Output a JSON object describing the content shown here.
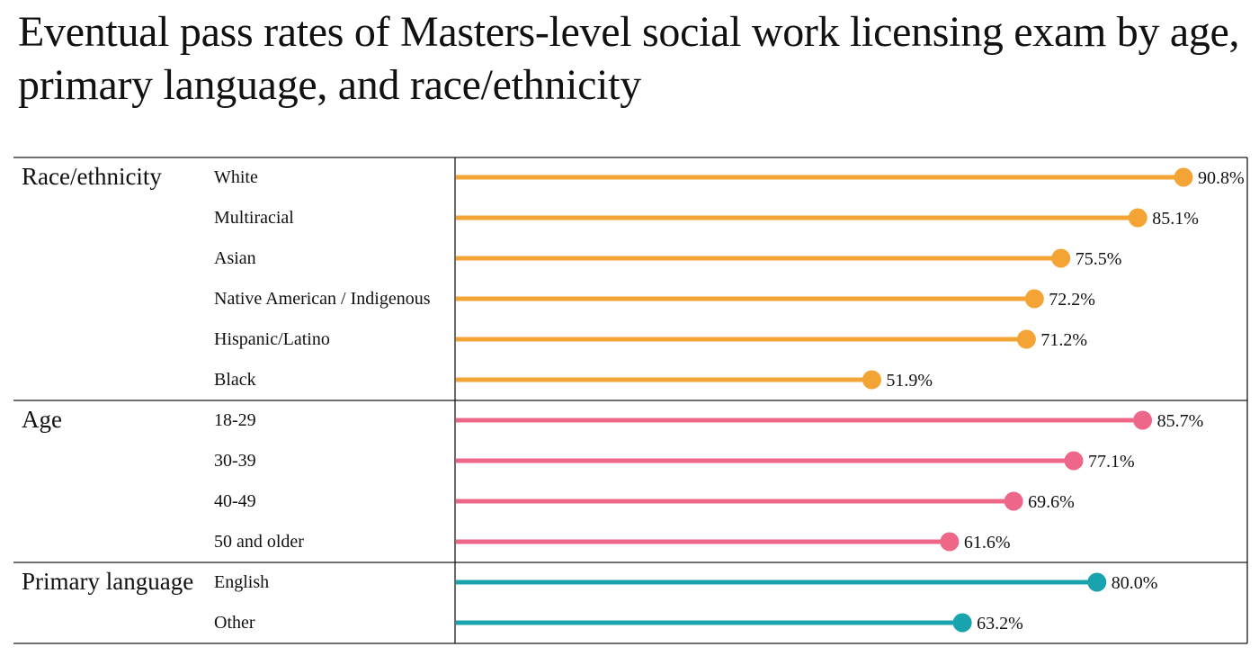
{
  "chart_data": {
    "type": "lollipop",
    "title": "Eventual pass rates of Masters-level social work licensing exam by age, primary language, and race/ethnicity",
    "value_format": "percent",
    "xlim": [
      0,
      100
    ],
    "grid": false,
    "legend": "none",
    "groups": [
      {
        "name": "Race/ethnicity",
        "color": "#F4A335",
        "items": [
          {
            "label": "White",
            "value": 90.8
          },
          {
            "label": "Multiracial",
            "value": 85.1
          },
          {
            "label": "Asian",
            "value": 75.5
          },
          {
            "label": "Native American / Indigenous",
            "value": 72.2
          },
          {
            "label": "Hispanic/Latino",
            "value": 71.2
          },
          {
            "label": "Black",
            "value": 51.9
          }
        ]
      },
      {
        "name": "Age",
        "color": "#EE6789",
        "items": [
          {
            "label": "18-29",
            "value": 85.7
          },
          {
            "label": "30-39",
            "value": 77.1
          },
          {
            "label": "40-49",
            "value": 69.6
          },
          {
            "label": "50 and older",
            "value": 61.6
          }
        ]
      },
      {
        "name": "Primary language",
        "color": "#18A3AE",
        "items": [
          {
            "label": "English",
            "value": 80.0
          },
          {
            "label": "Other",
            "value": 63.2
          }
        ]
      }
    ]
  }
}
